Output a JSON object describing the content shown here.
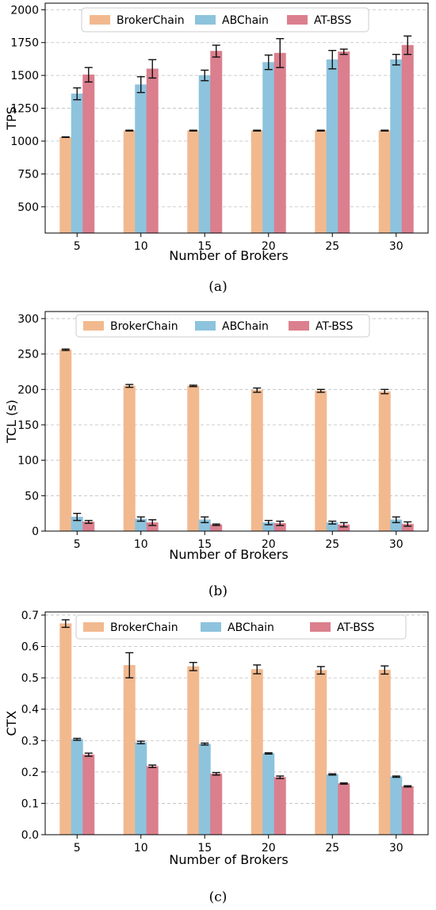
{
  "colors": {
    "BrokerChain": "#f2b98f",
    "ABChain": "#8dc3dd",
    "AT-BSS": "#db7f8e",
    "grid": "#bdbdbd"
  },
  "captions": [
    "(a)",
    "(b)",
    "(c)"
  ],
  "chart_data": [
    {
      "type": "bar",
      "xlabel": "Number of Brokers",
      "ylabel": "TPS",
      "categories": [
        "5",
        "10",
        "15",
        "20",
        "25",
        "30"
      ],
      "ylim": [
        300,
        2050
      ],
      "yticks": [
        500,
        750,
        1000,
        1250,
        1500,
        1750,
        2000
      ],
      "ytick_labels": [
        "500",
        "750",
        "1000",
        "1250",
        "1500",
        "1750",
        "2000"
      ],
      "grid": true,
      "legend": "top",
      "series": [
        {
          "name": "BrokerChain",
          "values": [
            1030,
            1080,
            1080,
            1080,
            1080,
            1080
          ],
          "errors": [
            2,
            3,
            3,
            3,
            3,
            3
          ]
        },
        {
          "name": "ABChain",
          "values": [
            1360,
            1430,
            1500,
            1600,
            1620,
            1620
          ],
          "errors": [
            45,
            60,
            40,
            55,
            70,
            40
          ]
        },
        {
          "name": "AT-BSS",
          "values": [
            1505,
            1550,
            1685,
            1670,
            1680,
            1730
          ],
          "errors": [
            55,
            70,
            45,
            110,
            20,
            70
          ]
        }
      ]
    },
    {
      "type": "bar",
      "xlabel": "Number of Brokers",
      "ylabel": "TCL (s)",
      "categories": [
        "5",
        "10",
        "15",
        "20",
        "25",
        "30"
      ],
      "ylim": [
        0,
        310
      ],
      "yticks": [
        0,
        50,
        100,
        150,
        200,
        250,
        300
      ],
      "ytick_labels": [
        "0",
        "50",
        "100",
        "150",
        "200",
        "250",
        "300"
      ],
      "grid": true,
      "legend": "top",
      "series": [
        {
          "name": "BrokerChain",
          "values": [
            256,
            205,
            205,
            199,
            198,
            197
          ],
          "errors": [
            1,
            2,
            1,
            3,
            2,
            3
          ]
        },
        {
          "name": "ABChain",
          "values": [
            20,
            17,
            16,
            12,
            12,
            16
          ],
          "errors": [
            5,
            3,
            4,
            3,
            2,
            4
          ]
        },
        {
          "name": "AT-BSS",
          "values": [
            13,
            12,
            9,
            11,
            9,
            10
          ],
          "errors": [
            2,
            4,
            1,
            3,
            3,
            3
          ]
        }
      ]
    },
    {
      "type": "bar",
      "xlabel": "Number of Brokers",
      "ylabel": "CTX",
      "categories": [
        "5",
        "10",
        "15",
        "20",
        "25",
        "30"
      ],
      "ylim": [
        0,
        0.71
      ],
      "yticks": [
        0,
        0.1,
        0.2,
        0.3,
        0.4,
        0.5,
        0.6,
        0.7
      ],
      "ytick_labels": [
        "0.0",
        "0.1",
        "0.2",
        "0.3",
        "0.4",
        "0.5",
        "0.6",
        "0.7"
      ],
      "grid": true,
      "legend": "top",
      "series": [
        {
          "name": "BrokerChain",
          "values": [
            0.673,
            0.54,
            0.536,
            0.527,
            0.524,
            0.525
          ],
          "errors": [
            0.012,
            0.04,
            0.013,
            0.014,
            0.012,
            0.013
          ]
        },
        {
          "name": "ABChain",
          "values": [
            0.304,
            0.294,
            0.289,
            0.259,
            0.192,
            0.185
          ],
          "errors": [
            0.003,
            0.004,
            0.003,
            0.002,
            0.002,
            0.002
          ]
        },
        {
          "name": "AT-BSS",
          "values": [
            0.255,
            0.218,
            0.194,
            0.183,
            0.163,
            0.154
          ],
          "errors": [
            0.005,
            0.004,
            0.004,
            0.004,
            0.002,
            0.002
          ]
        }
      ]
    }
  ]
}
